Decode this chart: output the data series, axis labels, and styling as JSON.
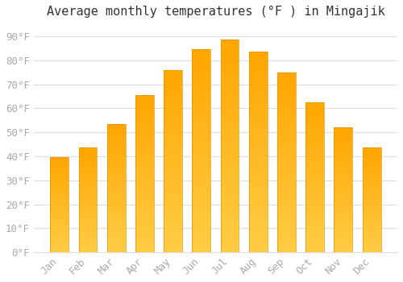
{
  "title": "Average monthly temperatures (°F ) in Mingajik",
  "months": [
    "Jan",
    "Feb",
    "Mar",
    "Apr",
    "May",
    "Jun",
    "Jul",
    "Aug",
    "Sep",
    "Oct",
    "Nov",
    "Dec"
  ],
  "values": [
    39.5,
    43.5,
    53.5,
    65.5,
    76.0,
    84.5,
    88.5,
    83.5,
    75.0,
    62.5,
    52.0,
    43.5
  ],
  "bar_color_bottom": "#FFCC44",
  "bar_color_top": "#FFA500",
  "bar_edge_color": "#E89400",
  "background_color": "#FFFFFF",
  "grid_color": "#DDDDDD",
  "yticks": [
    0,
    10,
    20,
    30,
    40,
    50,
    60,
    70,
    80,
    90
  ],
  "ylim": [
    0,
    95
  ],
  "tick_color": "#AAAAAA",
  "title_fontsize": 11,
  "tick_fontsize": 9,
  "font_family": "monospace"
}
